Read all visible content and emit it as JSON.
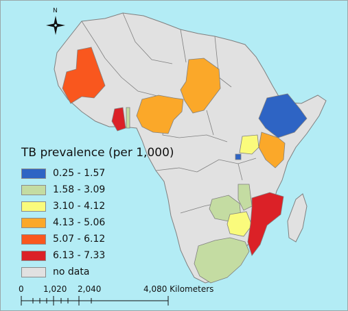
{
  "map": {
    "ocean_color": "#b3ecf5",
    "land_color": "#e1e1e1",
    "border_color": "#7f7f7f"
  },
  "north_arrow": {
    "label": "N",
    "icon": "compass-rose-icon"
  },
  "legend": {
    "title": "TB prevalence (per 1,000)",
    "classes": [
      {
        "label": "0.25 - 1.57",
        "color": "#2e64c4"
      },
      {
        "label": "1.58 - 3.09",
        "color": "#c4dca2"
      },
      {
        "label": "3.10 - 4.12",
        "color": "#fafb7c"
      },
      {
        "label": "4.13 - 5.06",
        "color": "#fba829"
      },
      {
        "label": "5.07 - 6.12",
        "color": "#f9571e"
      },
      {
        "label": "6.13 - 7.33",
        "color": "#db2127"
      },
      {
        "label": "no data",
        "color": "#e1e1e1"
      }
    ]
  },
  "countries_with_data": [
    {
      "name": "Mauritania",
      "class": "5.07 - 6.12"
    },
    {
      "name": "Ghana",
      "class": "6.13 - 7.33"
    },
    {
      "name": "Togo",
      "class": "1.58 - 3.09"
    },
    {
      "name": "Nigeria",
      "class": "4.13 - 5.06"
    },
    {
      "name": "Chad",
      "class": "4.13 - 5.06"
    },
    {
      "name": "Ethiopia",
      "class": "0.25 - 1.57"
    },
    {
      "name": "Uganda",
      "class": "3.10 - 4.12"
    },
    {
      "name": "Rwanda",
      "class": "0.25 - 1.57"
    },
    {
      "name": "Kenya",
      "class": "4.13 - 5.06"
    },
    {
      "name": "Malawi",
      "class": "1.58 - 3.09"
    },
    {
      "name": "Zambia",
      "class": "1.58 - 3.09"
    },
    {
      "name": "Zimbabwe",
      "class": "3.10 - 4.12"
    },
    {
      "name": "Mozambique",
      "class": "6.13 - 7.33"
    },
    {
      "name": "South Africa",
      "class": "1.58 - 3.09"
    }
  ],
  "scale_bar": {
    "ticks": [
      "0",
      "1,020",
      "2,040",
      "4,080 Kilometers"
    ]
  }
}
